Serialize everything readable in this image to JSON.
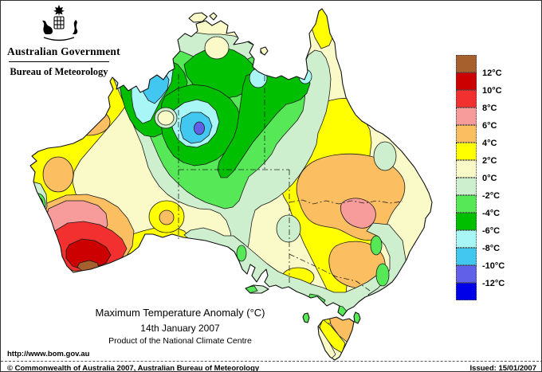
{
  "branding": {
    "government": "Australian Government",
    "bureau": "Bureau of Meteorology"
  },
  "title": {
    "line1": "Maximum Temperature Anomaly (°C)",
    "line2": "14th January 2007",
    "line3": "Product of the National Climate Centre"
  },
  "legend": {
    "unit": "°C",
    "entries": [
      {
        "color": "#A5602D",
        "label": "12°C"
      },
      {
        "color": "#CC0000",
        "label": "10°C"
      },
      {
        "color": "#F23030",
        "label": "8°C"
      },
      {
        "color": "#F89B9B",
        "label": "6°C"
      },
      {
        "color": "#FBBE60",
        "label": "4°C"
      },
      {
        "color": "#FFFF00",
        "label": "2°C"
      },
      {
        "color": "#FAFAC8",
        "label": "0°C"
      },
      {
        "color": "#CDEFCD",
        "label": "-2°C"
      },
      {
        "color": "#57E857",
        "label": "-4°C"
      },
      {
        "color": "#00BE00",
        "label": "-6°C"
      },
      {
        "color": "#A8F6F6",
        "label": "-8°C"
      },
      {
        "color": "#42C8F0",
        "label": "-10°C"
      },
      {
        "color": "#6060E8",
        "label": "-12°C"
      },
      {
        "color": "#0000E8",
        "label": null
      }
    ]
  },
  "palette": {
    "brown": "#A5602D",
    "dark_red": "#CC0000",
    "red": "#F23030",
    "pink": "#F89B9B",
    "orange": "#FBBE60",
    "yellow": "#FFFF00",
    "cream": "#FAFAC8",
    "pale_green": "#CDEFCD",
    "light_green": "#57E857",
    "green": "#00BE00",
    "pale_cyan": "#A8F6F6",
    "sky_blue": "#42C8F0",
    "blue_violet": "#6060E8",
    "blue": "#0000E8",
    "coastline": "#111111",
    "border_line": "#222222"
  },
  "footer": {
    "url": "http://www.bom.gov.au",
    "copyright": "© Commonwealth of Australia 2007, Australian Bureau of Meteorology",
    "issued": "Issued: 15/01/2007"
  }
}
